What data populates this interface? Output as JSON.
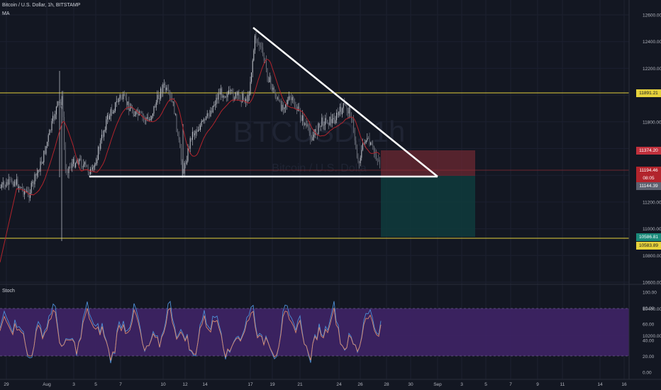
{
  "header": {
    "symbol_title": "Bitcoin / U.S. Dollar, 1h, BITSTAMP",
    "ma_label": "MA",
    "stoch_label": "Stoch"
  },
  "watermark": {
    "ticker": "BTCUSD, 1h",
    "name": "Bitcoin / U.S. Dolla"
  },
  "price_axis": {
    "ticks": [
      "12600.00",
      "12400.00",
      "12200.00",
      "12000.00",
      "11800.00",
      "11600.00",
      "11400.00",
      "11200.00",
      "11000.00",
      "10800.00",
      "10600.00",
      "10400.00",
      "10200.00"
    ]
  },
  "stoch_axis": {
    "ticks": [
      "100.00",
      "80.00",
      "60.00",
      "40.00",
      "20.00",
      "0.00"
    ]
  },
  "time_axis": {
    "ticks": [
      "29",
      "Aug",
      "3",
      "5",
      "7",
      "10",
      "12",
      "14",
      "17",
      "19",
      "21",
      "24",
      "26",
      "28",
      "30",
      "Sep",
      "3",
      "5",
      "7",
      "9",
      "11",
      "14",
      "16"
    ]
  },
  "price_tags": {
    "resistance": "11891.21",
    "stop": "11374.20",
    "current": "11194.46",
    "countdown": "08:05",
    "entry": "11144.39",
    "target": "10586.81",
    "support": "10583.89"
  },
  "colors": {
    "background": "#131722",
    "candle_up": "#c8ccd4",
    "ma_line": "#b2242c",
    "level_line": "#e6d23c",
    "stoch_k": "#4d8fd6",
    "stoch_d": "#d98a6e",
    "stoch_band": "#3f2466",
    "stop_zone": "#7a2a34",
    "target_zone": "#0f3b3c"
  },
  "chart_data": {
    "type": "candlestick",
    "symbol": "BTCUSD",
    "timeframe": "1h",
    "exchange": "BITSTAMP",
    "price_range": [
      10100,
      12650
    ],
    "levels": {
      "resistance": 11891.21,
      "support": 10583.89,
      "triangle_base": 11144.39,
      "descending_trendline": {
        "from_date": "Aug 17",
        "from_price": 12490,
        "apex_date": "Sep 1",
        "apex_price": 11144
      }
    },
    "position": {
      "entry": 11144.39,
      "stop": 11374.2,
      "target": 10586.81
    },
    "last_price": 11194.46,
    "stochastic": {
      "upper_band": 80,
      "lower_band": 20,
      "range": [
        0,
        100
      ]
    }
  }
}
